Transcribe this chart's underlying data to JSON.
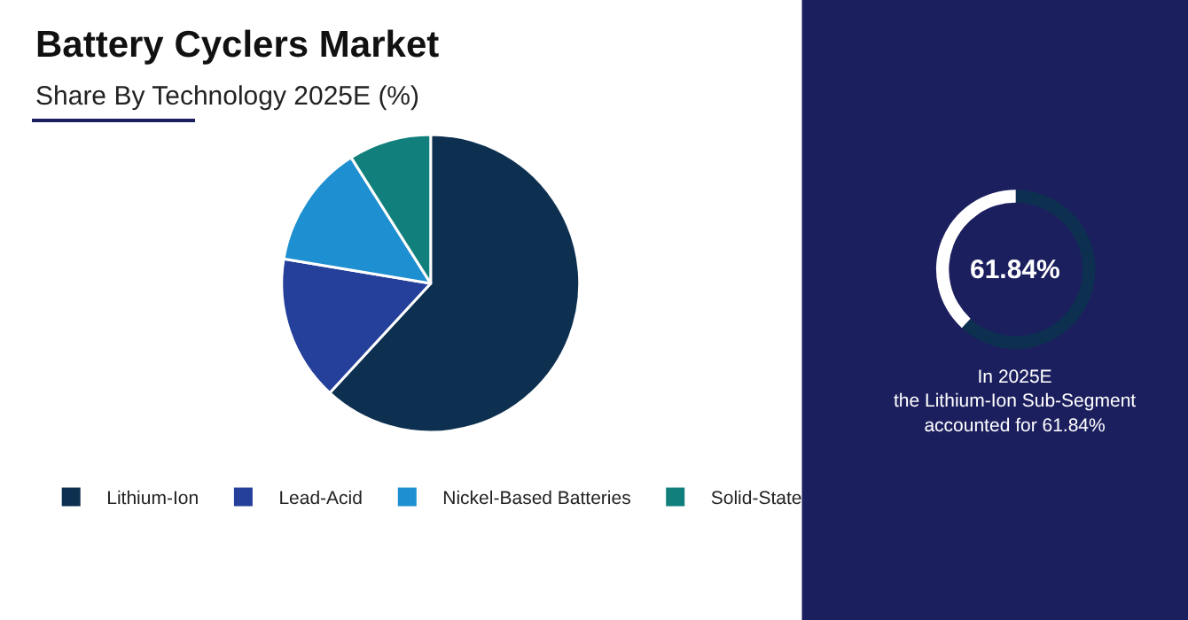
{
  "chart_data": [
    {
      "type": "pie",
      "title": "Battery Cyclers Market",
      "subtitle": "Share By Technology 2025E (%)",
      "categories": [
        "Lithium-Ion",
        "Lead-Acid",
        "Nickel-Based Batteries",
        "Solid-State"
      ],
      "values": [
        61.84,
        15.8,
        13.4,
        8.96
      ],
      "colors": [
        "#0d3050",
        "#25409a",
        "#1e8fd0",
        "#11807c"
      ],
      "legend": "bottom"
    },
    {
      "type": "donut",
      "categories": [
        null,
        null
      ],
      "values": [
        61.84,
        38.16
      ],
      "colors": [
        "#0d3050",
        "#ffffff"
      ],
      "annotations": [
        "61.84%",
        "In 2025E\nthe Lithium-Ion Sub-Segment\naccounted for 61.84%"
      ]
    }
  ]
}
